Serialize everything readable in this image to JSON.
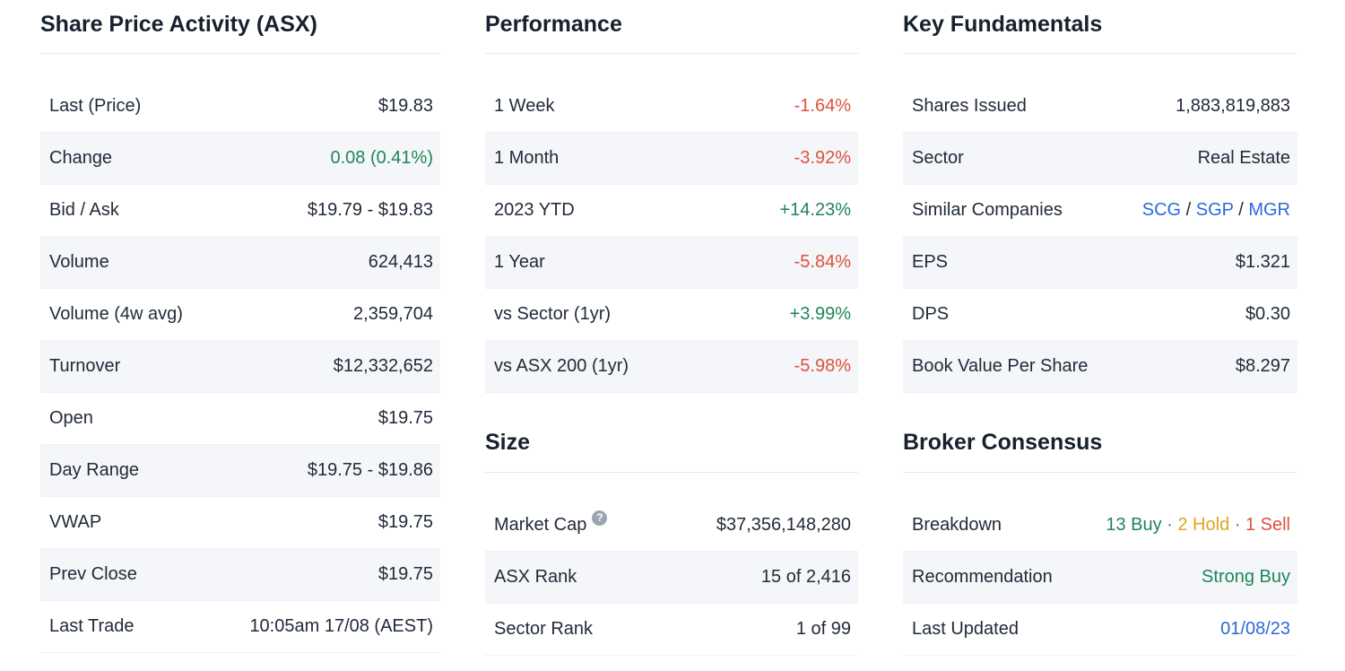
{
  "colors": {
    "green": "#208558",
    "red": "#e0513d",
    "blue": "#2b6bd9",
    "gold": "#e0a51f",
    "muted": "#5f6b7a",
    "text": "#212b3a"
  },
  "help_icon_glyph": "?",
  "columns": [
    {
      "name": "share-price-activity",
      "sections": [
        {
          "title": "Share Price Activity (ASX)",
          "rows": [
            {
              "label": "Last (Price)",
              "value": [
                {
                  "text": "$19.83"
                }
              ]
            },
            {
              "label": "Change",
              "value": [
                {
                  "text": "0.08 (0.41%)",
                  "color": "green"
                }
              ]
            },
            {
              "label": "Bid / Ask",
              "value": [
                {
                  "text": "$19.79 - $19.83"
                }
              ]
            },
            {
              "label": "Volume",
              "value": [
                {
                  "text": "624,413"
                }
              ]
            },
            {
              "label": "Volume (4w avg)",
              "value": [
                {
                  "text": "2,359,704"
                }
              ]
            },
            {
              "label": "Turnover",
              "value": [
                {
                  "text": "$12,332,652"
                }
              ]
            },
            {
              "label": "Open",
              "value": [
                {
                  "text": "$19.75"
                }
              ]
            },
            {
              "label": "Day Range",
              "value": [
                {
                  "text": "$19.75 - $19.86"
                }
              ]
            },
            {
              "label": "VWAP",
              "value": [
                {
                  "text": "$19.75"
                }
              ]
            },
            {
              "label": "Prev Close",
              "value": [
                {
                  "text": "$19.75"
                }
              ]
            },
            {
              "label": "Last Trade",
              "value": [
                {
                  "text": "10:05am 17/08 (AEST)"
                }
              ]
            }
          ]
        }
      ]
    },
    {
      "name": "performance-and-size",
      "sections": [
        {
          "title": "Performance",
          "rows": [
            {
              "label": "1 Week",
              "value": [
                {
                  "text": "-1.64%",
                  "color": "red"
                }
              ]
            },
            {
              "label": "1 Month",
              "value": [
                {
                  "text": "-3.92%",
                  "color": "red"
                }
              ]
            },
            {
              "label": "2023 YTD",
              "value": [
                {
                  "text": "+14.23%",
                  "color": "green"
                }
              ]
            },
            {
              "label": "1 Year",
              "value": [
                {
                  "text": "-5.84%",
                  "color": "red"
                }
              ]
            },
            {
              "label": "vs Sector (1yr)",
              "value": [
                {
                  "text": "+3.99%",
                  "color": "green"
                }
              ]
            },
            {
              "label": "vs ASX 200 (1yr)",
              "value": [
                {
                  "text": "-5.98%",
                  "color": "red"
                }
              ]
            }
          ]
        },
        {
          "title": "Size",
          "rows": [
            {
              "label": "Market Cap",
              "help_icon": true,
              "value": [
                {
                  "text": "$37,356,148,280"
                }
              ]
            },
            {
              "label": "ASX Rank",
              "value": [
                {
                  "text": "15 of 2,416"
                }
              ]
            },
            {
              "label": "Sector Rank",
              "value": [
                {
                  "text": "1 of 99"
                }
              ]
            }
          ]
        }
      ]
    },
    {
      "name": "fundamentals-and-consensus",
      "sections": [
        {
          "title": "Key Fundamentals",
          "rows": [
            {
              "label": "Shares Issued",
              "value": [
                {
                  "text": "1,883,819,883"
                }
              ]
            },
            {
              "label": "Sector",
              "value": [
                {
                  "text": "Real Estate"
                }
              ]
            },
            {
              "label": "Similar Companies",
              "value": [
                {
                  "text": "SCG",
                  "color": "blue",
                  "link": true,
                  "name": "similar-company-link-scg"
                },
                {
                  "text": " / "
                },
                {
                  "text": "SGP",
                  "color": "blue",
                  "link": true,
                  "name": "similar-company-link-sgp"
                },
                {
                  "text": " / "
                },
                {
                  "text": "MGR",
                  "color": "blue",
                  "link": true,
                  "name": "similar-company-link-mgr"
                }
              ]
            },
            {
              "label": "EPS",
              "value": [
                {
                  "text": "$1.321"
                }
              ]
            },
            {
              "label": "DPS",
              "value": [
                {
                  "text": "$0.30"
                }
              ]
            },
            {
              "label": "Book Value Per Share",
              "value": [
                {
                  "text": "$8.297"
                }
              ]
            }
          ]
        },
        {
          "title": "Broker Consensus",
          "rows": [
            {
              "label": "Breakdown",
              "value": [
                {
                  "text": "13 Buy",
                  "color": "green"
                },
                {
                  "text": " · ",
                  "color": "muted"
                },
                {
                  "text": "2 Hold",
                  "color": "gold"
                },
                {
                  "text": " · ",
                  "color": "muted"
                },
                {
                  "text": "1 Sell",
                  "color": "red"
                }
              ]
            },
            {
              "label": "Recommendation",
              "value": [
                {
                  "text": "Strong Buy",
                  "color": "green"
                }
              ]
            },
            {
              "label": "Last Updated",
              "value": [
                {
                  "text": "01/08/23",
                  "color": "blue",
                  "link": true,
                  "name": "last-updated-link"
                }
              ]
            }
          ]
        }
      ]
    }
  ]
}
